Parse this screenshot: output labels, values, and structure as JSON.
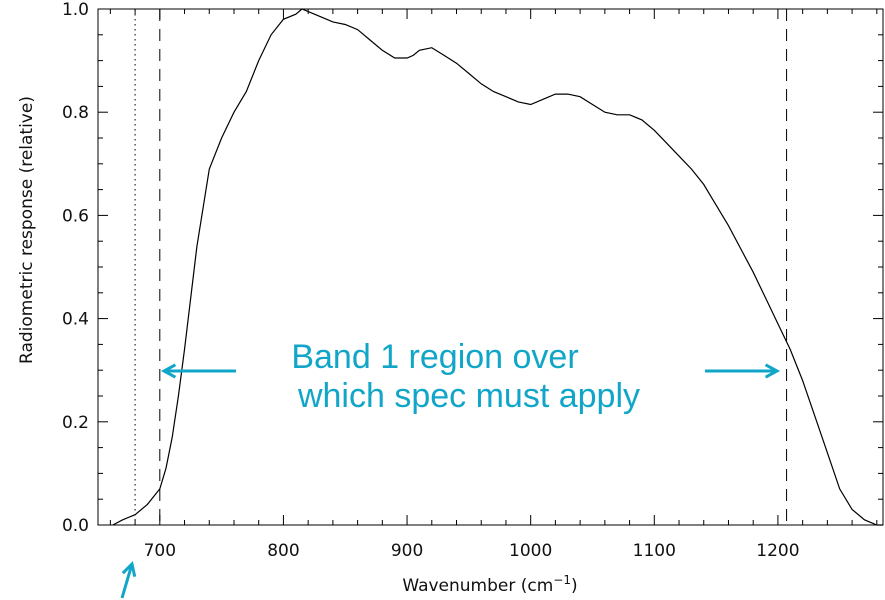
{
  "chart_data": {
    "type": "line",
    "title": "",
    "xlabel": "Wavenumber (cm",
    "xlabel_sup": "−1",
    "xlabel_close": ")",
    "ylabel": "Radiometric response (relative)",
    "xlim": [
      650,
      1285
    ],
    "ylim": [
      0.0,
      1.0
    ],
    "x_ticks": [
      700,
      800,
      900,
      1000,
      1100,
      1200
    ],
    "y_ticks": [
      0.0,
      0.2,
      0.4,
      0.6,
      0.8,
      1.0
    ],
    "x_tick_labels": [
      "700",
      "800",
      "900",
      "1000",
      "1100",
      "1200"
    ],
    "y_tick_labels": [
      "0.0",
      "0.2",
      "0.4",
      "0.6",
      "0.8",
      "1.0"
    ],
    "grid": false,
    "series": [
      {
        "x": [
          662,
          670,
          680,
          690,
          700,
          705,
          710,
          715,
          720,
          725,
          730,
          740,
          750,
          760,
          770,
          780,
          790,
          800,
          810,
          815,
          820,
          830,
          840,
          850,
          860,
          870,
          880,
          890,
          900,
          905,
          910,
          920,
          930,
          940,
          950,
          960,
          970,
          980,
          990,
          1000,
          1010,
          1020,
          1030,
          1040,
          1050,
          1060,
          1070,
          1080,
          1090,
          1100,
          1110,
          1120,
          1130,
          1140,
          1150,
          1160,
          1170,
          1180,
          1190,
          1200,
          1210,
          1220,
          1230,
          1240,
          1250,
          1260,
          1270,
          1280,
          1285
        ],
        "y": [
          0.0,
          0.01,
          0.02,
          0.04,
          0.07,
          0.11,
          0.17,
          0.25,
          0.34,
          0.44,
          0.54,
          0.69,
          0.75,
          0.8,
          0.84,
          0.9,
          0.95,
          0.98,
          0.99,
          1.0,
          0.995,
          0.985,
          0.975,
          0.97,
          0.96,
          0.94,
          0.92,
          0.905,
          0.905,
          0.91,
          0.92,
          0.925,
          0.91,
          0.895,
          0.875,
          0.855,
          0.84,
          0.83,
          0.82,
          0.815,
          0.825,
          0.835,
          0.835,
          0.83,
          0.815,
          0.8,
          0.795,
          0.795,
          0.785,
          0.765,
          0.74,
          0.715,
          0.69,
          0.66,
          0.62,
          0.58,
          0.535,
          0.49,
          0.44,
          0.39,
          0.34,
          0.28,
          0.21,
          0.14,
          0.07,
          0.03,
          0.01,
          0.0,
          0.0
        ]
      }
    ],
    "reference_lines": [
      {
        "x": 680,
        "style": "dotted"
      },
      {
        "x": 700,
        "style": "dashed"
      },
      {
        "x": 1207,
        "style": "dashed"
      }
    ],
    "annotation": {
      "line1": "Band 1 region over",
      "line2": "which spec must apply",
      "color": "#11a6c8"
    }
  }
}
